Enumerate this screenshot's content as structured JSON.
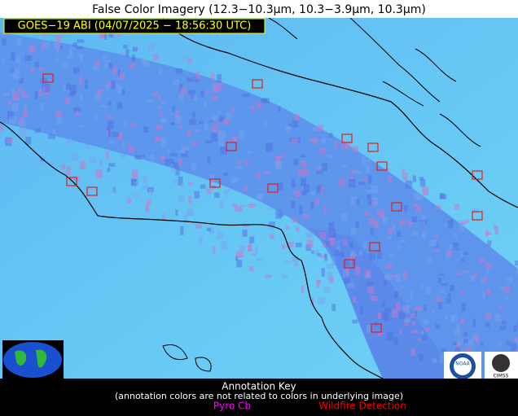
{
  "header": {
    "title": "False Color Imagery (12.3−10.3µm, 10.3−3.9µm, 10.3µm)",
    "label": "GOES−19 ABI (04/07/2025 − 18:56:30 UTC)"
  },
  "logos": {
    "noaa": "NOAA",
    "cimss": "CIMSS"
  },
  "footer": {
    "title": "Annotation Key",
    "note": "(annotation colors are not related to colors in underlying image)",
    "legend": [
      "Pyro Cb",
      "Wildfire Detection"
    ]
  }
}
